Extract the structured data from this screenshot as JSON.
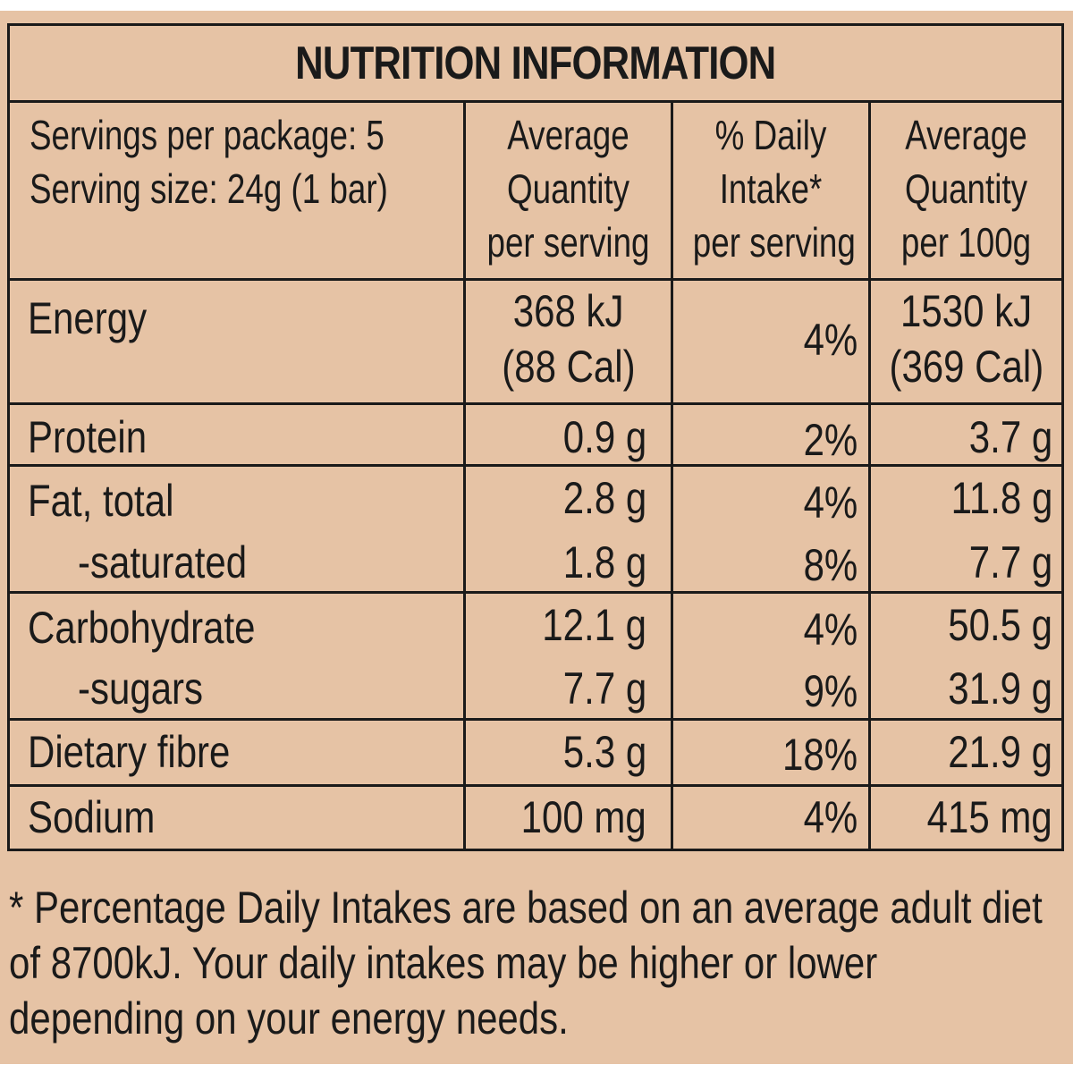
{
  "title": "NUTRITION INFORMATION",
  "servings": {
    "per_package": "Servings per package: 5",
    "size": "Serving size: 24g (1 bar)"
  },
  "columns": {
    "per_serving": [
      "Average",
      "Quantity",
      "per serving"
    ],
    "daily_intake": [
      "% Daily",
      "Intake*",
      "per serving"
    ],
    "per_100g": [
      "Average",
      "Quantity",
      "per 100g"
    ]
  },
  "rows": {
    "energy": {
      "label": "Energy",
      "serving": "368 kJ",
      "serving_sub": "(88 Cal)",
      "di": "4%",
      "per100": "1530 kJ",
      "per100_sub": "(369 Cal)"
    },
    "protein": {
      "label": "Protein",
      "serving": "0.9 g",
      "di": "2%",
      "per100": "3.7 g"
    },
    "fat": {
      "label": "Fat, total",
      "serving": "2.8 g",
      "di": "4%",
      "per100": "11.8 g"
    },
    "saturated": {
      "label": "-saturated",
      "serving": "1.8 g",
      "di": "8%",
      "per100": "7.7 g"
    },
    "carbohydrate": {
      "label": "Carbohydrate",
      "serving": "12.1 g",
      "di": "4%",
      "per100": "50.5 g"
    },
    "sugars": {
      "label": "-sugars",
      "serving": "7.7 g",
      "di": "9%",
      "per100": "31.9 g"
    },
    "fibre": {
      "label": "Dietary fibre",
      "serving": "5.3 g",
      "di": "18%",
      "per100": "21.9 g"
    },
    "sodium": {
      "label": "Sodium",
      "serving": "100 mg",
      "di": "4%",
      "per100": "415 mg"
    }
  },
  "footnote": [
    "* Percentage Daily Intakes are based on an average adult diet",
    "of 8700kJ. Your daily intakes may be higher or lower",
    "depending on your energy needs."
  ],
  "colors": {
    "background": "#e6c3a5",
    "ink": "#1a1a1a"
  }
}
